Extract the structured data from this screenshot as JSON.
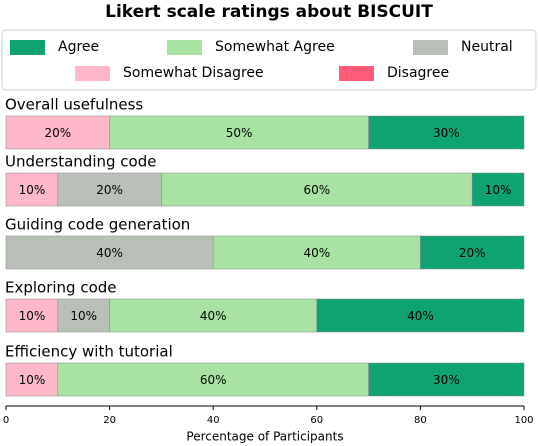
{
  "chart_data": {
    "type": "stacked-barh",
    "title": "Likert scale ratings about BISCUIT",
    "x_label": "Percentage of Participants",
    "categories": [
      "Overall usefulness",
      "Understanding code",
      "Guiding code generation",
      "Exploring code",
      "Efficiency with tutorial"
    ],
    "series": [
      {
        "name": "Agree",
        "color": "#0ea371",
        "values": [
          30,
          10,
          20,
          40,
          30
        ],
        "value_labels": [
          "30%",
          "10%",
          "20%",
          "40%",
          "30%"
        ]
      },
      {
        "name": "Somewhat Agree",
        "color": "#a8e3a3",
        "values": [
          50,
          60,
          40,
          40,
          60
        ],
        "value_labels": [
          "50%",
          "60%",
          "40%",
          "40%",
          "60%"
        ]
      },
      {
        "name": "Neutral",
        "color": "#b8c0b8",
        "values": [
          0,
          20,
          40,
          10,
          0
        ],
        "value_labels": [
          null,
          "20%",
          "40%",
          "10%",
          null
        ]
      },
      {
        "name": "Somewhat Disagree",
        "color": "#ffb8c9",
        "values": [
          20,
          10,
          0,
          10,
          10
        ],
        "value_labels": [
          "20%",
          "10%",
          null,
          "10%",
          "10%"
        ]
      },
      {
        "name": "Disagree",
        "color": "#ff5c7a",
        "values": [
          0,
          0,
          0,
          0,
          0
        ],
        "value_labels": [
          null,
          null,
          null,
          null,
          null
        ]
      }
    ],
    "xlim": [
      0,
      100
    ],
    "xticks": [
      0,
      20,
      40,
      60,
      80,
      100
    ],
    "grid": false
  }
}
